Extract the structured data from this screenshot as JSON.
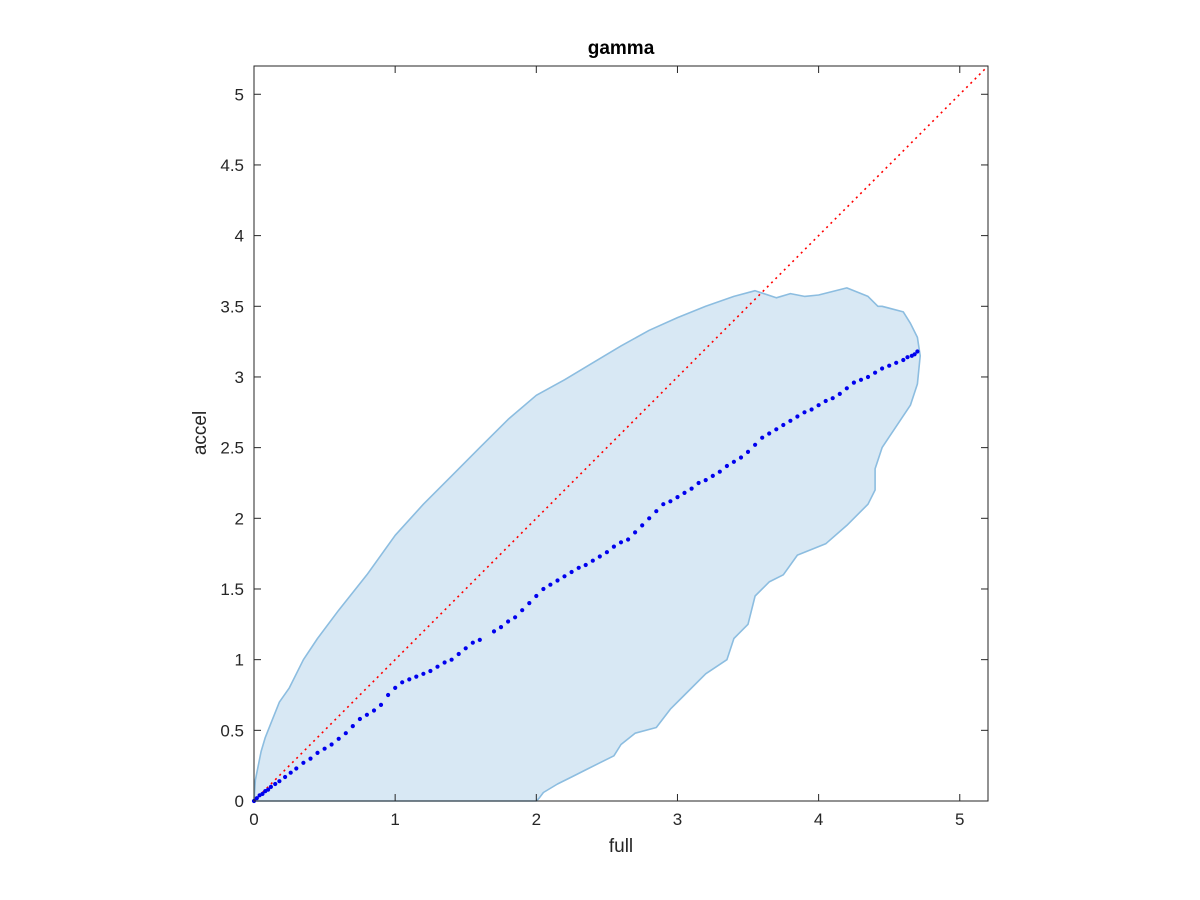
{
  "chart_data": {
    "type": "scatter",
    "title": "gamma",
    "xlabel": "full",
    "ylabel": "accel",
    "xlim": [
      0,
      5.2
    ],
    "ylim": [
      0,
      5.2
    ],
    "xticks": [
      0,
      1,
      2,
      3,
      4,
      5
    ],
    "yticks": [
      0,
      0.5,
      1,
      1.5,
      2,
      2.5,
      3,
      3.5,
      4,
      4.5,
      5
    ],
    "xtick_labels": [
      "0",
      "1",
      "2",
      "3",
      "4",
      "5"
    ],
    "ytick_labels": [
      "0",
      "0.5",
      "1",
      "1.5",
      "2",
      "2.5",
      "3",
      "3.5",
      "4",
      "4.5",
      "5"
    ],
    "grid": false,
    "box": true,
    "colors": {
      "points": "#0000ee",
      "region_fill": "#d8e8f4",
      "region_edge": "#8cbde0",
      "identity_line": "#ff0000",
      "axes": "#262626"
    },
    "reference_line": {
      "from": [
        0,
        0
      ],
      "to": [
        5.2,
        5.2
      ],
      "style": "dotted"
    },
    "region": {
      "x": [
        0,
        0.01,
        0.05,
        0.08,
        0.12,
        0.18,
        0.25,
        0.35,
        0.45,
        0.6,
        0.8,
        1.0,
        1.2,
        1.4,
        1.6,
        1.8,
        2.0,
        2.2,
        2.4,
        2.6,
        2.8,
        3.0,
        3.2,
        3.4,
        3.55,
        3.7,
        3.8,
        3.9,
        4.0,
        4.2,
        4.35,
        4.42,
        4.45,
        4.6,
        4.65,
        4.7,
        4.72,
        4.7,
        4.65,
        4.55,
        4.45,
        4.4,
        4.4,
        4.35,
        4.3,
        4.2,
        4.05,
        3.85,
        3.75,
        3.65,
        3.55,
        3.5,
        3.4,
        3.35,
        3.2,
        3.05,
        2.95,
        2.85,
        2.7,
        2.6,
        2.55,
        2.45,
        2.35,
        2.25,
        2.15,
        2.05,
        2.02,
        2.0,
        1.5,
        1.0,
        0.5,
        0
      ],
      "y": [
        0,
        0.15,
        0.35,
        0.45,
        0.55,
        0.7,
        0.8,
        1.0,
        1.15,
        1.35,
        1.6,
        1.88,
        2.1,
        2.3,
        2.5,
        2.7,
        2.87,
        2.98,
        3.1,
        3.22,
        3.33,
        3.42,
        3.5,
        3.57,
        3.61,
        3.56,
        3.59,
        3.57,
        3.58,
        3.63,
        3.57,
        3.5,
        3.5,
        3.46,
        3.38,
        3.28,
        3.15,
        2.95,
        2.8,
        2.65,
        2.5,
        2.35,
        2.2,
        2.1,
        2.05,
        1.95,
        1.82,
        1.74,
        1.6,
        1.55,
        1.45,
        1.25,
        1.15,
        1.0,
        0.9,
        0.75,
        0.65,
        0.52,
        0.48,
        0.4,
        0.32,
        0.27,
        0.22,
        0.17,
        0.12,
        0.06,
        0.02,
        0,
        0,
        0,
        0,
        0
      ]
    },
    "series": [
      {
        "x": [
          0,
          0.02,
          0.04,
          0.06,
          0.08,
          0.1,
          0.12,
          0.15,
          0.18,
          0.22,
          0.26,
          0.3,
          0.35,
          0.4,
          0.45,
          0.5,
          0.55,
          0.6,
          0.65,
          0.7,
          0.75,
          0.8,
          0.85,
          0.9,
          0.95,
          1.0,
          1.05,
          1.1,
          1.15,
          1.2,
          1.25,
          1.3,
          1.35,
          1.4,
          1.45,
          1.5,
          1.55,
          1.6,
          1.7,
          1.75,
          1.8,
          1.85,
          1.9,
          1.95,
          2.0,
          2.05,
          2.1,
          2.15,
          2.2,
          2.25,
          2.3,
          2.35,
          2.4,
          2.45,
          2.5,
          2.55,
          2.6,
          2.65,
          2.7,
          2.75,
          2.8,
          2.85,
          2.9,
          2.95,
          3.0,
          3.05,
          3.1,
          3.15,
          3.2,
          3.25,
          3.3,
          3.35,
          3.4,
          3.45,
          3.5,
          3.55,
          3.6,
          3.65,
          3.7,
          3.75,
          3.8,
          3.85,
          3.9,
          3.95,
          4.0,
          4.05,
          4.1,
          4.15,
          4.2,
          4.25,
          4.3,
          4.35,
          4.4,
          4.45,
          4.5,
          4.55,
          4.6,
          4.63,
          4.66,
          4.68,
          4.7
        ],
        "y": [
          0,
          0.02,
          0.04,
          0.05,
          0.07,
          0.08,
          0.1,
          0.12,
          0.14,
          0.17,
          0.2,
          0.23,
          0.27,
          0.3,
          0.34,
          0.37,
          0.4,
          0.44,
          0.48,
          0.53,
          0.58,
          0.61,
          0.64,
          0.68,
          0.75,
          0.8,
          0.84,
          0.86,
          0.88,
          0.9,
          0.92,
          0.95,
          0.98,
          1.0,
          1.04,
          1.08,
          1.12,
          1.14,
          1.2,
          1.23,
          1.27,
          1.3,
          1.35,
          1.4,
          1.45,
          1.5,
          1.53,
          1.56,
          1.59,
          1.62,
          1.65,
          1.67,
          1.7,
          1.73,
          1.76,
          1.8,
          1.83,
          1.85,
          1.9,
          1.95,
          2.0,
          2.05,
          2.1,
          2.12,
          2.15,
          2.18,
          2.21,
          2.25,
          2.27,
          2.3,
          2.33,
          2.37,
          2.4,
          2.43,
          2.47,
          2.52,
          2.57,
          2.6,
          2.63,
          2.66,
          2.69,
          2.72,
          2.75,
          2.77,
          2.8,
          2.83,
          2.85,
          2.88,
          2.92,
          2.96,
          2.98,
          3.0,
          3.03,
          3.06,
          3.08,
          3.1,
          3.12,
          3.14,
          3.15,
          3.16,
          3.18
        ]
      }
    ]
  }
}
